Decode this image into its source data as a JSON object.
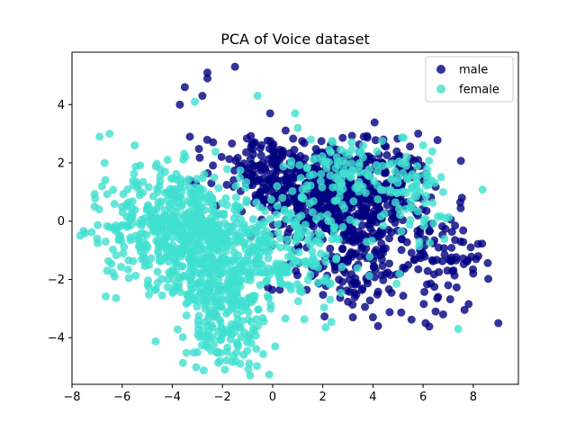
{
  "chart_data": {
    "type": "scatter",
    "title": "PCA of Voice dataset",
    "xlabel": "",
    "ylabel": "",
    "xlim": [
      -8,
      9.8
    ],
    "ylim": [
      -5.6,
      5.8
    ],
    "xticks": [
      -8,
      -6,
      -4,
      -2,
      0,
      2,
      4,
      6,
      8
    ],
    "yticks": [
      -4,
      -2,
      0,
      2,
      4
    ],
    "grid": false,
    "legend_position": "top-right",
    "series": [
      {
        "name": "male",
        "color": "#000080",
        "marker": "circle",
        "alpha": 0.8,
        "clusters": [
          {
            "center": [
              2.0,
              1.0
            ],
            "spread": [
              1.3,
              0.8
            ],
            "count": 360
          },
          {
            "center": [
              4.2,
              0.6
            ],
            "spread": [
              1.1,
              1.1
            ],
            "count": 260
          },
          {
            "center": [
              -0.3,
              1.8
            ],
            "spread": [
              1.1,
              0.6
            ],
            "count": 130
          },
          {
            "center": [
              6.8,
              -1.4
            ],
            "spread": [
              0.8,
              0.9
            ],
            "count": 70
          },
          {
            "center": [
              3.0,
              -1.5
            ],
            "spread": [
              1.3,
              0.8
            ],
            "count": 120
          }
        ],
        "outliers": [
          [
            -1.5,
            5.3
          ],
          [
            -2.6,
            5.1
          ],
          [
            -2.6,
            4.9
          ],
          [
            -3.5,
            4.6
          ],
          [
            -2.8,
            4.3
          ],
          [
            -3.7,
            4.0
          ],
          [
            -0.1,
            3.7
          ],
          [
            -3.3,
            2.9
          ],
          [
            9.0,
            -3.5
          ],
          [
            6.1,
            -3.5
          ],
          [
            4.0,
            -3.3
          ],
          [
            3.2,
            -3.3
          ],
          [
            6.5,
            -3.1
          ],
          [
            8.0,
            -1.8
          ],
          [
            7.9,
            -0.9
          ],
          [
            7.5,
            -0.7
          ],
          [
            6.6,
            -2.6
          ],
          [
            6.8,
            -3.2
          ],
          [
            7.0,
            -2.2
          ],
          [
            8.2,
            -1.2
          ]
        ]
      },
      {
        "name": "female",
        "color": "#40e0d0",
        "marker": "circle",
        "alpha": 0.8,
        "clusters": [
          {
            "center": [
              -3.8,
              -0.2
            ],
            "spread": [
              1.4,
              1.0
            ],
            "count": 500
          },
          {
            "center": [
              -2.0,
              -2.1
            ],
            "spread": [
              0.9,
              1.1
            ],
            "count": 280
          },
          {
            "center": [
              0.3,
              -1.0
            ],
            "spread": [
              1.4,
              1.0
            ],
            "count": 220
          },
          {
            "center": [
              3.2,
              1.7
            ],
            "spread": [
              1.3,
              0.6
            ],
            "count": 120
          },
          {
            "center": [
              5.6,
              0.5
            ],
            "spread": [
              1.0,
              1.0
            ],
            "count": 60
          },
          {
            "center": [
              -1.7,
              -4.0
            ],
            "spread": [
              0.7,
              0.5
            ],
            "count": 60
          }
        ],
        "outliers": [
          [
            -7.1,
            0.5
          ],
          [
            -6.9,
            2.9
          ],
          [
            -6.5,
            3.0
          ],
          [
            -6.7,
            2.0
          ],
          [
            -6.8,
            1.2
          ],
          [
            -6.6,
            -1.7
          ],
          [
            -0.6,
            4.3
          ],
          [
            0.9,
            3.7
          ],
          [
            -3.1,
            4.1
          ],
          [
            1.0,
            3.2
          ],
          [
            -1.9,
            -5.1
          ],
          [
            -2.1,
            -4.8
          ],
          [
            -3.0,
            -4.5
          ],
          [
            0.1,
            -4.3
          ],
          [
            7.4,
            -3.7
          ],
          [
            -6.3,
            -1.9
          ],
          [
            -5.5,
            2.6
          ],
          [
            6.0,
            2.6
          ],
          [
            6.8,
            1.0
          ],
          [
            -7.0,
            -0.6
          ]
        ]
      }
    ]
  }
}
